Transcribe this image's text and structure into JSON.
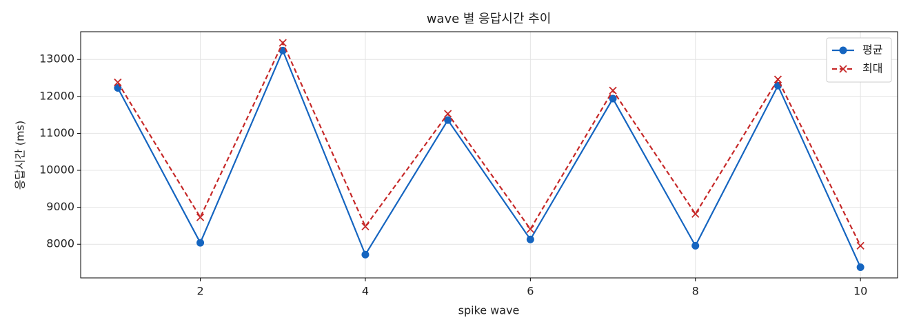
{
  "chart_data": {
    "type": "line",
    "title": "wave 별 응답시간 추이",
    "xlabel": "spike wave",
    "ylabel": "응답시간 (ms)",
    "x": [
      1,
      2,
      3,
      4,
      5,
      6,
      7,
      8,
      9,
      10
    ],
    "series": [
      {
        "name": "평균",
        "color": "#1565c0",
        "marker": "circle",
        "dashed": false,
        "values": [
          12230,
          8040,
          13240,
          7720,
          11360,
          8130,
          11940,
          7960,
          12290,
          7380
        ]
      },
      {
        "name": "최대",
        "color": "#c62828",
        "marker": "x",
        "dashed": true,
        "values": [
          12380,
          8730,
          13450,
          8480,
          11530,
          8410,
          12160,
          8820,
          12460,
          7960
        ]
      }
    ],
    "xlim": [
      0.55,
      10.45
    ],
    "ylim": [
      7090,
      13750
    ],
    "xticks": [
      2,
      4,
      6,
      8,
      10
    ],
    "yticks": [
      8000,
      9000,
      10000,
      11000,
      12000,
      13000
    ],
    "grid": true,
    "legend": "upper right"
  }
}
